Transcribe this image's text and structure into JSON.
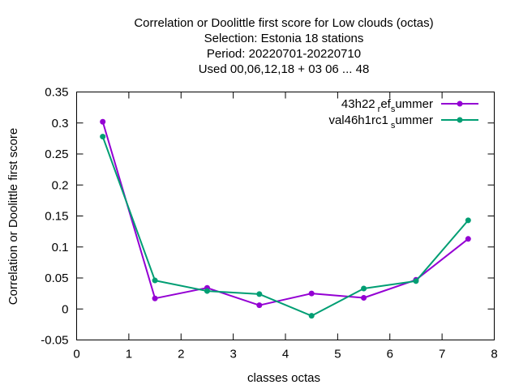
{
  "chart_data": {
    "type": "line",
    "title_lines": [
      "Correlation or Doolittle first score  for Low clouds (octas)",
      "Selection: Estonia      18 stations",
      "Period: 20220701-20220710",
      "Used  00,06,12,18  + 03 06 ... 48"
    ],
    "xlabel": "classes octas",
    "ylabel": "Correlation or Doolittle first score",
    "xlim": [
      0,
      8
    ],
    "ylim": [
      -0.05,
      0.35
    ],
    "xticks": [
      "0",
      "1",
      "2",
      "3",
      "4",
      "5",
      "6",
      "7",
      "8"
    ],
    "yticks": [
      "-0.05",
      "0",
      "0.05",
      "0.1",
      "0.15",
      "0.2",
      "0.25",
      "0.3",
      "0.35"
    ],
    "grid": false,
    "legend_position": "top-right",
    "legend_labels": {
      "s1": {
        "main": "43h22",
        "sub1": "r",
        "mid": "ef",
        "sub2": "s",
        "tail": "ummer"
      },
      "s2": {
        "main": "val46h1rc1",
        "sub1": "s",
        "tail": "ummer"
      }
    },
    "series": [
      {
        "name": "43h22_ref_summer",
        "color": "#9400d3",
        "x": [
          0.5,
          1.5,
          2.5,
          3.5,
          4.5,
          5.5,
          6.5,
          7.5
        ],
        "values": [
          0.302,
          0.017,
          0.034,
          0.006,
          0.025,
          0.018,
          0.047,
          0.113
        ]
      },
      {
        "name": "val46h1rc1_summer",
        "color": "#009e73",
        "x": [
          0.5,
          1.5,
          2.5,
          3.5,
          4.5,
          5.5,
          6.5,
          7.5
        ],
        "values": [
          0.278,
          0.046,
          0.029,
          0.024,
          -0.011,
          0.033,
          0.045,
          0.143
        ]
      }
    ]
  }
}
